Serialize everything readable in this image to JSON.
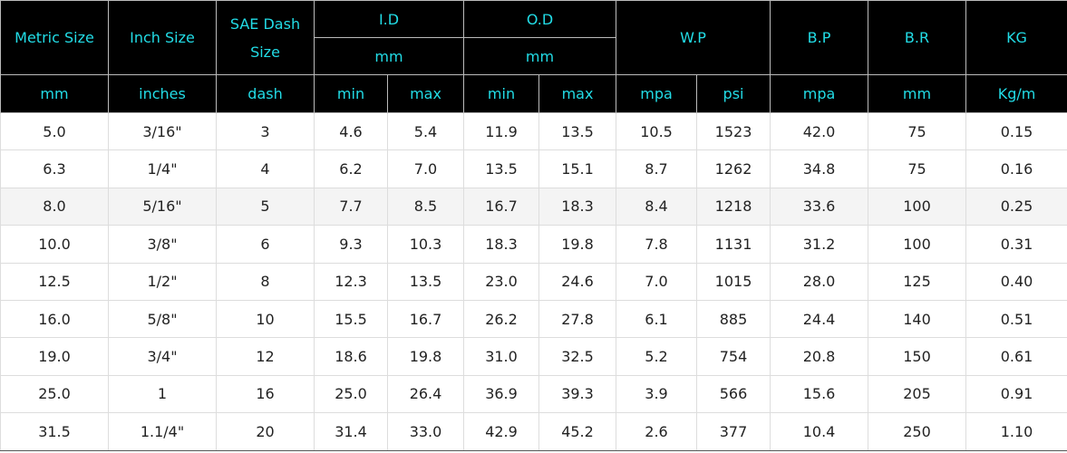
{
  "table": {
    "header_top": [
      "Metric Size",
      "Inch Size",
      "SAE Dash Size",
      "I.D",
      "O.D",
      "W.P",
      "B.P",
      "B.R",
      "KG"
    ],
    "header_sub": [
      "mm",
      "mm"
    ],
    "units": [
      "mm",
      "inches",
      "dash",
      "min",
      "max",
      "min",
      "max",
      "mpa",
      "psi",
      "mpa",
      "mm",
      "Kg/m"
    ],
    "rows": [
      [
        "5.0",
        "3/16\"",
        "3",
        "4.6",
        "5.4",
        "11.9",
        "13.5",
        "10.5",
        "1523",
        "42.0",
        "75",
        "0.15"
      ],
      [
        "6.3",
        "1/4\"",
        "4",
        "6.2",
        "7.0",
        "13.5",
        "15.1",
        "8.7",
        "1262",
        "34.8",
        "75",
        "0.16"
      ],
      [
        "8.0",
        "5/16\"",
        "5",
        "7.7",
        "8.5",
        "16.7",
        "18.3",
        "8.4",
        "1218",
        "33.6",
        "100",
        "0.25"
      ],
      [
        "10.0",
        "3/8\"",
        "6",
        "9.3",
        "10.3",
        "18.3",
        "19.8",
        "7.8",
        "1131",
        "31.2",
        "100",
        "0.31"
      ],
      [
        "12.5",
        "1/2\"",
        "8",
        "12.3",
        "13.5",
        "23.0",
        "24.6",
        "7.0",
        "1015",
        "28.0",
        "125",
        "0.40"
      ],
      [
        "16.0",
        "5/8\"",
        "10",
        "15.5",
        "16.7",
        "26.2",
        "27.8",
        "6.1",
        "885",
        "24.4",
        "140",
        "0.51"
      ],
      [
        "19.0",
        "3/4\"",
        "12",
        "18.6",
        "19.8",
        "31.0",
        "32.5",
        "5.2",
        "754",
        "20.8",
        "150",
        "0.61"
      ],
      [
        "25.0",
        "1",
        "16",
        "25.0",
        "26.4",
        "36.9",
        "39.3",
        "3.9",
        "566",
        "15.6",
        "205",
        "0.91"
      ],
      [
        "31.5",
        "1.1/4\"",
        "20",
        "31.4",
        "33.0",
        "42.9",
        "45.2",
        "2.6",
        "377",
        "10.4",
        "250",
        "1.10"
      ]
    ]
  }
}
